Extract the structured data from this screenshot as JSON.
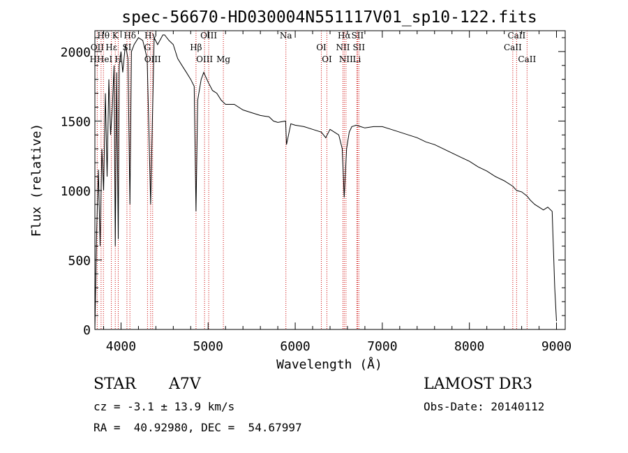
{
  "chart_data": {
    "type": "line",
    "title": "spec-56670-HD030004N551117V01_sp10-122.fits",
    "xlabel": "Wavelength (Å)",
    "ylabel": "Flux (relative)",
    "xlim": [
      3700,
      9100
    ],
    "ylim": [
      0,
      2150
    ],
    "xticks": [
      4000,
      5000,
      6000,
      7000,
      8000,
      9000
    ],
    "yticks": [
      0,
      500,
      1000,
      1500,
      2000
    ],
    "xtick_labels": [
      "4000",
      "5000",
      "6000",
      "7000",
      "8000",
      "9000"
    ],
    "ytick_labels": [
      "0",
      "500",
      "1000",
      "1500",
      "2000"
    ],
    "series": [
      {
        "name": "Flux",
        "x": [
          3700,
          3720,
          3740,
          3760,
          3780,
          3800,
          3820,
          3840,
          3860,
          3880,
          3900,
          3920,
          3934,
          3950,
          3968,
          3980,
          4000,
          4020,
          4050,
          4080,
          4102,
          4120,
          4150,
          4200,
          4250,
          4300,
          4340,
          4380,
          4420,
          4480,
          4500,
          4550,
          4600,
          4650,
          4700,
          4750,
          4800,
          4840,
          4861,
          4880,
          4920,
          4950,
          5000,
          5050,
          5100,
          5150,
          5200,
          5300,
          5400,
          5500,
          5600,
          5700,
          5750,
          5800,
          5890,
          5900,
          5950,
          6000,
          6100,
          6200,
          6300,
          6350,
          6400,
          6450,
          6500,
          6540,
          6563,
          6590,
          6620,
          6650,
          6700,
          6750,
          6800,
          6900,
          7000,
          7100,
          7200,
          7300,
          7400,
          7500,
          7600,
          7700,
          7800,
          7900,
          8000,
          8100,
          8200,
          8300,
          8400,
          8500,
          8542,
          8600,
          8662,
          8700,
          8750,
          8800,
          8850,
          8900,
          8950,
          8980,
          9000
        ],
        "y": [
          0,
          700,
          1150,
          600,
          1300,
          1000,
          1700,
          1100,
          1800,
          1400,
          1600,
          1900,
          600,
          1850,
          650,
          1900,
          2000,
          1850,
          2050,
          1950,
          900,
          2000,
          2050,
          2100,
          2080,
          1950,
          900,
          2100,
          2050,
          2120,
          2120,
          2080,
          2050,
          1950,
          1900,
          1850,
          1800,
          1750,
          850,
          1650,
          1800,
          1850,
          1780,
          1720,
          1700,
          1650,
          1620,
          1620,
          1580,
          1560,
          1540,
          1530,
          1500,
          1490,
          1500,
          1330,
          1480,
          1470,
          1460,
          1440,
          1420,
          1380,
          1440,
          1420,
          1400,
          1300,
          950,
          1300,
          1420,
          1460,
          1470,
          1460,
          1450,
          1460,
          1460,
          1440,
          1420,
          1400,
          1380,
          1350,
          1330,
          1300,
          1270,
          1240,
          1210,
          1170,
          1140,
          1100,
          1070,
          1030,
          1000,
          990,
          960,
          930,
          900,
          880,
          860,
          880,
          850,
          300,
          60
        ]
      }
    ],
    "lines": [
      {
        "label": "Hθ",
        "x": 3798
      },
      {
        "label": "OII",
        "x": 3727
      },
      {
        "label": "HHeI",
        "x": 3771
      },
      {
        "label": "K",
        "x": 3934
      },
      {
        "label": "Hε",
        "x": 3889
      },
      {
        "label": "H",
        "x": 3968
      },
      {
        "label": "Hδ",
        "x": 4102
      },
      {
        "label": "SI",
        "x": 4068
      },
      {
        "label": "OIII",
        "x": 4363
      },
      {
        "label": "Hγ",
        "x": 4340
      },
      {
        "label": "G",
        "x": 4304
      },
      {
        "label": "OIII",
        "x": 4959
      },
      {
        "label": "OIII",
        "x": 5007
      },
      {
        "label": "Hβ",
        "x": 4861
      },
      {
        "label": "Mg",
        "x": 5175
      },
      {
        "label": "Na",
        "x": 5893
      },
      {
        "label": "OI",
        "x": 6300
      },
      {
        "label": "OI",
        "x": 6364
      },
      {
        "label": "Hα",
        "x": 6563
      },
      {
        "label": "NII",
        "x": 6548
      },
      {
        "label": "NII",
        "x": 6583
      },
      {
        "label": "SII",
        "x": 6716
      },
      {
        "label": "SII",
        "x": 6731
      },
      {
        "label": "Li",
        "x": 6708
      },
      {
        "label": "CaII",
        "x": 8542
      },
      {
        "label": "CaII",
        "x": 8498
      },
      {
        "label": "CaII",
        "x": 8662
      }
    ]
  },
  "info": {
    "class": "STAR",
    "subclass": "A7V",
    "survey": "LAMOST DR3",
    "cz": "cz = -3.1 ± 13.9 km/s",
    "obs_date": "Obs-Date: 20140112",
    "coords": "RA =  40.92980, DEC =  54.67997"
  },
  "colors": {
    "line": "#000000",
    "marker": "#cc0000",
    "axis": "#000000"
  }
}
